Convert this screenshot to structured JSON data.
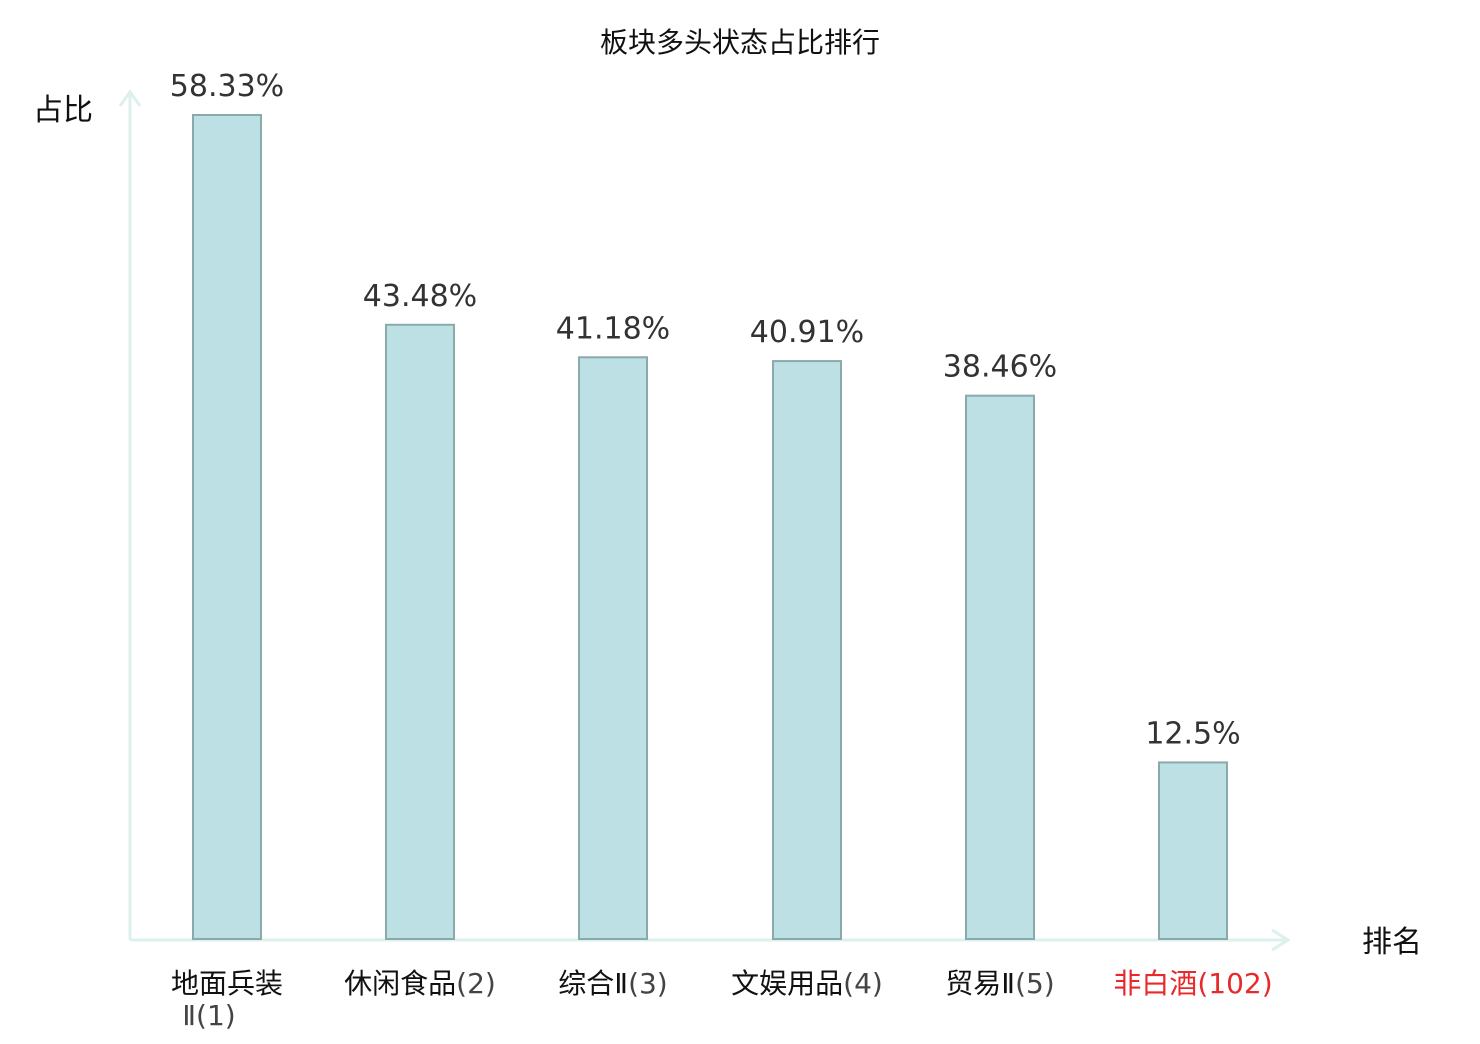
{
  "chart_data": {
    "type": "bar",
    "title": "板块多头状态占比排行",
    "ylabel": "占比",
    "xlabel": "排名",
    "categories": [
      {
        "name": "地面兵装Ⅱ",
        "rank": "(1)"
      },
      {
        "name": "休闲食品",
        "rank": "(2)"
      },
      {
        "name": "综合Ⅱ",
        "rank": "(3)"
      },
      {
        "name": "文娱用品",
        "rank": "(4)"
      },
      {
        "name": "贸易Ⅱ",
        "rank": "(5)"
      },
      {
        "name": "非白酒",
        "rank": "(102)"
      }
    ],
    "values": [
      58.33,
      43.48,
      41.18,
      40.91,
      38.46,
      12.5
    ],
    "data_labels": [
      "58.33%",
      "43.48%",
      "41.18%",
      "40.91%",
      "38.46%",
      "12.5%"
    ],
    "highlight_index": 5,
    "ylim": [
      0,
      58.33
    ],
    "grid": false,
    "colors": {
      "bar_fill": "#bce0e3",
      "bar_stroke": "#8aa9ab",
      "axis": "#dcf0ee",
      "text": "#111111",
      "rank_text": "#444444",
      "value_text": "#333333",
      "highlight": "#e8282a"
    }
  }
}
